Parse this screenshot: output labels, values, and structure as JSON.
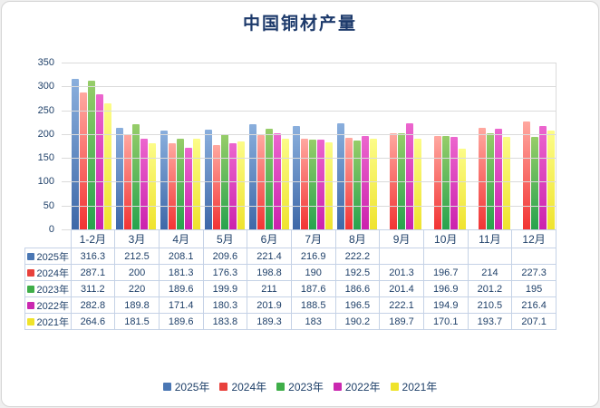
{
  "title": "中国铜材产量",
  "chart_data": {
    "type": "bar",
    "title": "中国铜材产量",
    "categories": [
      "1-2月",
      "3月",
      "4月",
      "5月",
      "6月",
      "7月",
      "8月",
      "9月",
      "10月",
      "11月",
      "12月"
    ],
    "series": [
      {
        "name": "2025年",
        "values": [
          316.3,
          212.5,
          208.1,
          209.6,
          221.4,
          216.9,
          222.2,
          null,
          null,
          null,
          null
        ]
      },
      {
        "name": "2024年",
        "values": [
          287.1,
          200,
          181.3,
          176.3,
          198.8,
          190,
          192.5,
          201.3,
          196.7,
          214,
          227.3
        ]
      },
      {
        "name": "2023年",
        "values": [
          311.2,
          220,
          189.6,
          199.9,
          211,
          187.6,
          186.6,
          201.4,
          196.9,
          201.2,
          195
        ]
      },
      {
        "name": "2022年",
        "values": [
          282.8,
          189.8,
          171.4,
          180.3,
          201.9,
          188.5,
          196.5,
          222.1,
          194.9,
          210.5,
          216.4
        ]
      },
      {
        "name": "2021年",
        "values": [
          264.6,
          181.5,
          189.6,
          183.8,
          189.3,
          183,
          190.2,
          189.7,
          170.1,
          193.7,
          207.1
        ]
      }
    ],
    "ylim": [
      0,
      350
    ],
    "yticks": [
      0,
      50,
      100,
      150,
      200,
      250,
      300,
      350
    ],
    "grid": "horizontal",
    "legend_position": "bottom",
    "data_table_with_legend_keys": true
  },
  "series_colors": [
    {
      "name": "2025年",
      "top": "#8aafdd",
      "bottom": "#3e68a8",
      "key": "#4a77b4"
    },
    {
      "name": "2024年",
      "top": "#ffa8a0",
      "bottom": "#f23434",
      "key": "#e8413c"
    },
    {
      "name": "2023年",
      "top": "#97cd69",
      "bottom": "#27a34e",
      "key": "#3fae49"
    },
    {
      "name": "2022年",
      "top": "#ec66ce",
      "bottom": "#cb22ad",
      "key": "#ca28b0"
    },
    {
      "name": "2021年",
      "top": "#fcfc88",
      "bottom": "#efe32e",
      "key": "#efe32b"
    }
  ],
  "style": {
    "text_color": "#1f4069",
    "title_color": "#1d3a6b",
    "gridline_color": "#dbdbdb",
    "table_border_color": "#c5d2e6"
  }
}
